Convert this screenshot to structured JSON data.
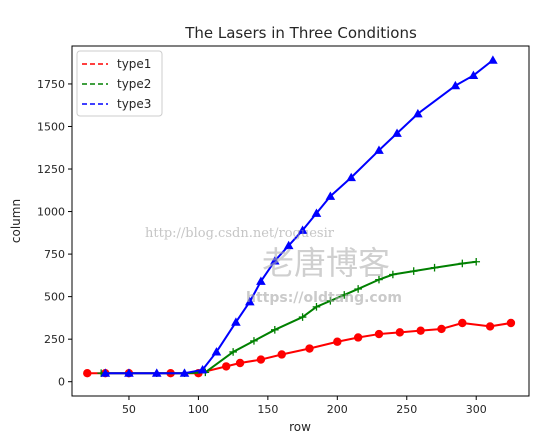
{
  "chart_data": {
    "type": "line",
    "title": "The Lasers in Three Conditions",
    "xlabel": "row",
    "ylabel": "column",
    "xlim": [
      9,
      338
    ],
    "ylim": [
      -84,
      1973
    ],
    "xticks": [
      50,
      100,
      150,
      200,
      250,
      300
    ],
    "yticks": [
      0,
      250,
      500,
      750,
      1000,
      1250,
      1500,
      1750
    ],
    "grid": false,
    "legend_position": "top-left",
    "series": [
      {
        "name": "type1",
        "color": "#ff0000",
        "legend_style": "dashed",
        "marker": "circle",
        "x": [
          20,
          33,
          50,
          80,
          100,
          120,
          130,
          145,
          160,
          180,
          200,
          215,
          230,
          245,
          260,
          275,
          290,
          310,
          325
        ],
        "y": [
          50,
          50,
          50,
          50,
          50,
          90,
          110,
          130,
          160,
          195,
          235,
          260,
          280,
          290,
          300,
          310,
          345,
          325,
          345
        ]
      },
      {
        "name": "type2",
        "color": "#008000",
        "legend_style": "dashed",
        "marker": "plus",
        "x": [
          30,
          50,
          70,
          90,
          105,
          125,
          140,
          155,
          175,
          185,
          195,
          205,
          215,
          230,
          240,
          255,
          270,
          290,
          300
        ],
        "y": [
          50,
          50,
          50,
          50,
          55,
          175,
          240,
          305,
          380,
          440,
          475,
          510,
          545,
          600,
          630,
          650,
          670,
          695,
          705
        ]
      },
      {
        "name": "type3",
        "color": "#0000ff",
        "legend_style": "dashed",
        "marker": "triangle",
        "x": [
          33,
          50,
          70,
          90,
          103,
          113,
          127,
          137,
          145,
          155,
          165,
          175,
          185,
          195,
          210,
          230,
          243,
          258,
          285,
          298,
          312
        ],
        "y": [
          50,
          50,
          50,
          50,
          70,
          175,
          350,
          470,
          590,
          710,
          800,
          890,
          990,
          1090,
          1200,
          1360,
          1460,
          1575,
          1740,
          1800,
          1890
        ]
      }
    ]
  },
  "watermark": {
    "line1": "http://blog.csdn.net/roguesir",
    "line2": "老唐博客",
    "line3": "https://oldtang.com",
    "color": "#9e9e9e"
  }
}
